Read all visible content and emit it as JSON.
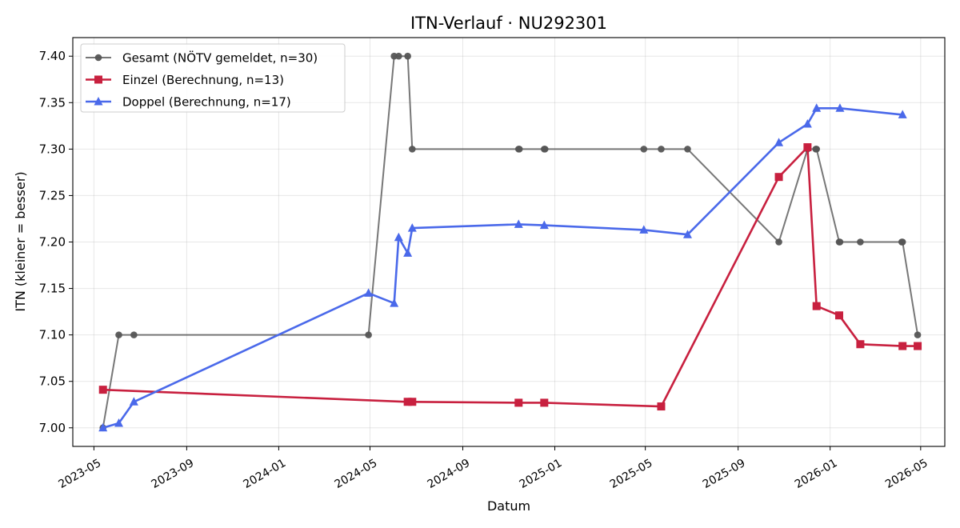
{
  "chart_data": {
    "type": "line",
    "title": "ITN-Verlauf · NU292301",
    "xlabel": "Datum",
    "ylabel": "ITN  (kleiner = besser)",
    "x_type": "date",
    "xlim": [
      "2023-04-03",
      "2026-06-02"
    ],
    "ylim": [
      6.98,
      7.42
    ],
    "x_ticks": [
      "2023-05-01",
      "2023-09-01",
      "2024-01-01",
      "2024-05-01",
      "2024-09-01",
      "2025-01-01",
      "2025-05-01",
      "2025-09-01",
      "2026-01-01",
      "2026-05-01"
    ],
    "x_tick_labels": [
      "2023-05",
      "2023-09",
      "2024-01",
      "2024-05",
      "2024-09",
      "2025-01",
      "2025-05",
      "2025-09",
      "2026-01",
      "2026-05"
    ],
    "y_ticks": [
      7.0,
      7.05,
      7.1,
      7.15,
      7.2,
      7.25,
      7.3,
      7.35,
      7.4
    ],
    "y_tick_labels": [
      "7.00",
      "7.05",
      "7.10",
      "7.15",
      "7.20",
      "7.25",
      "7.30",
      "7.35",
      "7.40"
    ],
    "grid": true,
    "legend_position": "top-left",
    "series": [
      {
        "name": "Gesamt (NÖTV gemeldet, n=30)",
        "color": "#555555",
        "marker": "circle",
        "x": [
          "2023-05-13",
          "2023-06-03",
          "2023-06-23",
          "2024-04-29",
          "2024-06-02",
          "2024-06-08",
          "2024-06-20",
          "2024-06-26",
          "2024-11-14",
          "2024-11-15",
          "2024-12-18",
          "2024-12-19",
          "2025-04-29",
          "2025-05-22",
          "2025-06-26",
          "2025-10-25",
          "2025-12-02",
          "2025-12-13",
          "2025-12-14",
          "2026-01-13",
          "2026-01-14",
          "2026-02-10",
          "2026-04-06",
          "2026-04-07",
          "2026-04-27"
        ],
        "values": [
          7.0,
          7.1,
          7.1,
          7.1,
          7.4,
          7.4,
          7.4,
          7.3,
          7.3,
          7.3,
          7.3,
          7.3,
          7.3,
          7.3,
          7.3,
          7.2,
          7.3,
          7.3,
          7.3,
          7.2,
          7.2,
          7.2,
          7.2,
          7.2,
          7.1
        ]
      },
      {
        "name": "Einzel (Berechnung, n=13)",
        "color": "#c8203f",
        "marker": "square",
        "x": [
          "2023-05-13",
          "2024-06-20",
          "2024-06-26",
          "2024-11-14",
          "2024-12-18",
          "2025-05-22",
          "2025-10-25",
          "2025-12-02",
          "2025-12-14",
          "2026-01-13",
          "2026-02-10",
          "2026-04-07",
          "2026-04-27"
        ],
        "values": [
          7.041,
          7.028,
          7.028,
          7.027,
          7.027,
          7.023,
          7.27,
          7.302,
          7.131,
          7.121,
          7.09,
          7.088,
          7.088
        ]
      },
      {
        "name": "Doppel (Berechnung, n=17)",
        "color": "#4a69ea",
        "marker": "triangle",
        "x": [
          "2023-05-13",
          "2023-06-03",
          "2023-06-23",
          "2024-04-29",
          "2024-06-02",
          "2024-06-08",
          "2024-06-20",
          "2024-06-26",
          "2024-11-14",
          "2024-12-18",
          "2025-04-29",
          "2025-06-26",
          "2025-10-25",
          "2025-12-02",
          "2025-12-14",
          "2026-01-14",
          "2026-04-07"
        ],
        "values": [
          7.0,
          7.005,
          7.028,
          7.145,
          7.134,
          7.205,
          7.188,
          7.215,
          7.219,
          7.218,
          7.213,
          7.208,
          7.307,
          7.327,
          7.344,
          7.344,
          7.337
        ]
      }
    ]
  }
}
